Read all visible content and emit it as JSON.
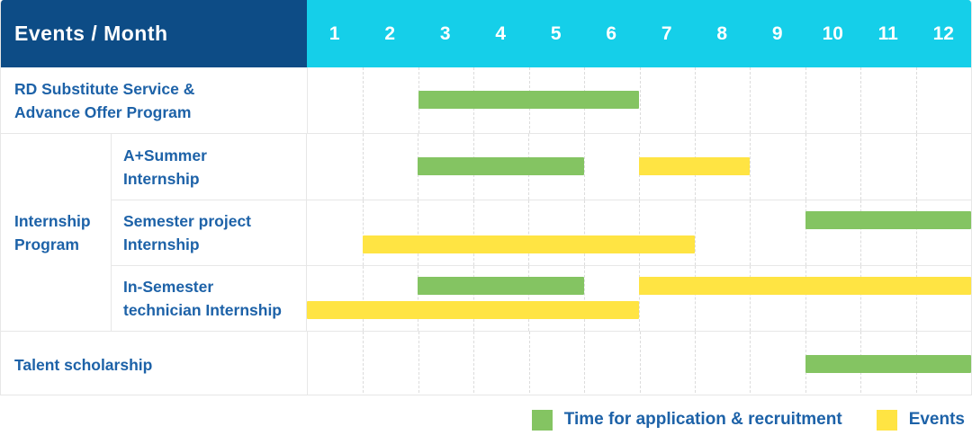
{
  "colors": {
    "header_navy": "#0d4c86",
    "months_cyan": "#15cfe9",
    "application_green": "#84c462",
    "events_yellow": "#ffe443",
    "label_blue": "#1d62a8",
    "grid_line": "#e7e7e7",
    "month_gridline": "#dcdcdc"
  },
  "header": {
    "title": "Events / Month"
  },
  "chart_data": {
    "type": "bar",
    "subtype": "gantt-schedule",
    "title": "Events / Month",
    "x_axis": {
      "label": "Month",
      "ticks": [
        "1",
        "2",
        "3",
        "4",
        "5",
        "6",
        "7",
        "8",
        "9",
        "10",
        "11",
        "12"
      ],
      "range": [
        1,
        12
      ]
    },
    "legend": [
      {
        "name": "Time for application & recruitment",
        "key": "application",
        "color": "#84c462"
      },
      {
        "name": "Events",
        "key": "events",
        "color": "#ffe443"
      }
    ],
    "tasks": [
      {
        "group": "",
        "name": "RD Substitute Service & Advance Offer Program",
        "label_lines": [
          "RD Substitute Service &",
          "Advance Offer Program"
        ],
        "bars": [
          {
            "series": "application",
            "start_month": 3,
            "end_month": 6,
            "line": 0
          }
        ]
      },
      {
        "group": "Internship Program",
        "name": "A+Summer Internship",
        "label_lines": [
          "A+Summer",
          "Internship"
        ],
        "bars": [
          {
            "series": "application",
            "start_month": 3,
            "end_month": 5,
            "line": 0
          },
          {
            "series": "events",
            "start_month": 7,
            "end_month": 8,
            "line": 0
          }
        ]
      },
      {
        "group": "Internship Program",
        "name": "Semester project Internship",
        "label_lines": [
          "Semester project",
          "Internship"
        ],
        "bars": [
          {
            "series": "application",
            "start_month": 10,
            "end_month": 12,
            "line": 0
          },
          {
            "series": "events",
            "start_month": 2,
            "end_month": 7,
            "line": 1
          }
        ]
      },
      {
        "group": "Internship Program",
        "name": "In-Semester technician Internship",
        "label_lines": [
          "In-Semester",
          "technician Internship"
        ],
        "bars": [
          {
            "series": "application",
            "start_month": 3,
            "end_month": 5,
            "line": 0
          },
          {
            "series": "events",
            "start_month": 7,
            "end_month": 12,
            "line": 0
          },
          {
            "series": "events",
            "start_month": 1,
            "end_month": 6,
            "line": 1
          }
        ]
      },
      {
        "group": "",
        "name": "Talent scholarship",
        "label_lines": [
          "Talent scholarship"
        ],
        "bars": [
          {
            "series": "application",
            "start_month": 10,
            "end_month": 12,
            "line": 0
          }
        ]
      }
    ],
    "layout_groups": [
      {
        "group_label_lines": [],
        "task_indexes": [
          0
        ]
      },
      {
        "group_label_lines": [
          "Internship",
          "Program"
        ],
        "task_indexes": [
          1,
          2,
          3
        ]
      },
      {
        "group_label_lines": [],
        "task_indexes": [
          4
        ]
      }
    ]
  }
}
